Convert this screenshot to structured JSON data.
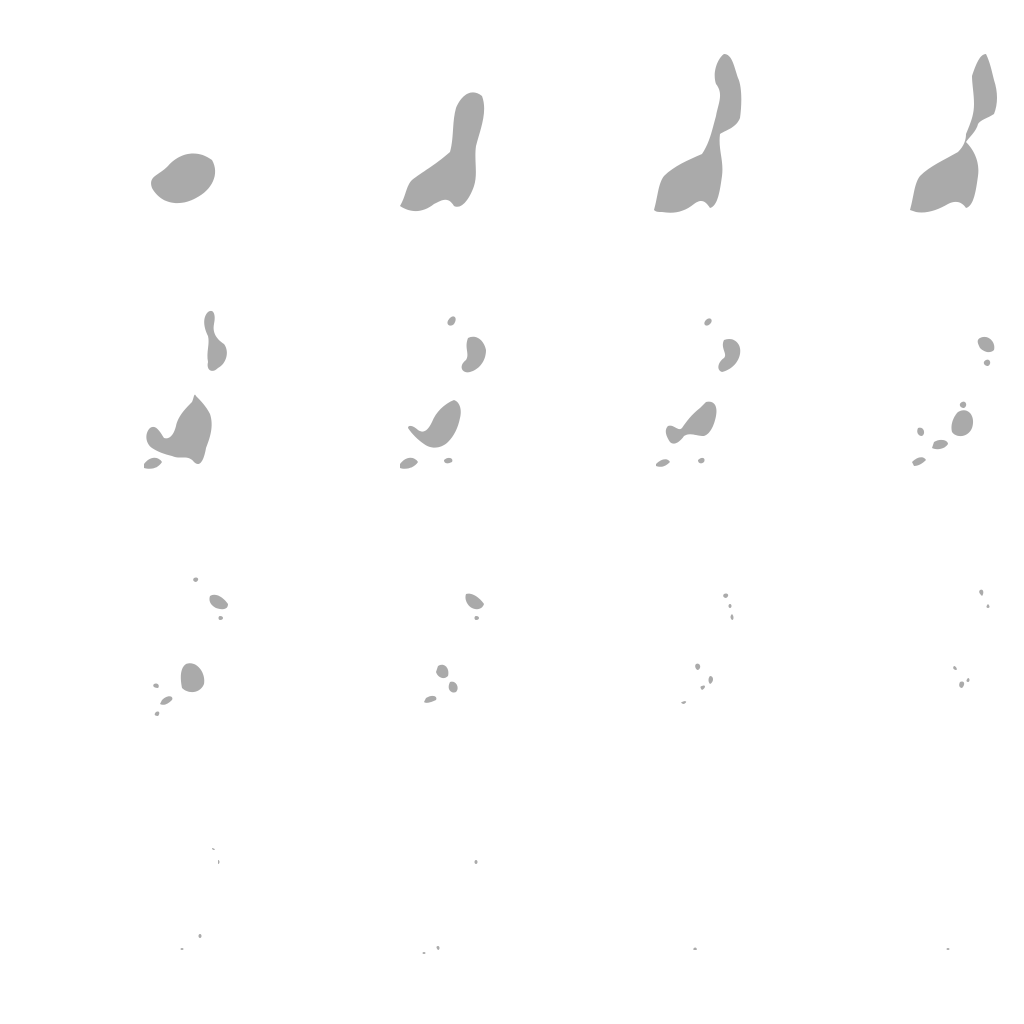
{
  "figure": {
    "rows": 4,
    "columns": 4,
    "fill_color": "#aaaaaa",
    "background_color": "#ffffff"
  }
}
